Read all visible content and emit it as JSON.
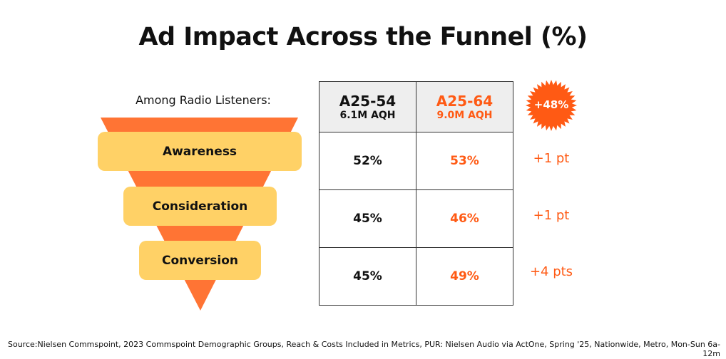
{
  "title": "Ad Impact Across the Funnel (%)",
  "subtitle": "Among Radio Listeners:",
  "funnel": [
    "Awareness",
    "Consideration",
    "Conversion"
  ],
  "table": {
    "headers": [
      {
        "label": "A25-54",
        "sub": "6.1M AQH"
      },
      {
        "label": "A25-64",
        "sub": "9.0M AQH"
      }
    ],
    "rows": [
      [
        "52%",
        "53%"
      ],
      [
        "45%",
        "46%"
      ],
      [
        "45%",
        "49%"
      ]
    ]
  },
  "badge": "+48%",
  "deltas": [
    "+1 pt",
    "+1 pt",
    "+4 pts"
  ],
  "source": "Source:Nielsen Commspoint, 2023 Commspoint Demographic Groups, Reach & Costs Included in Metrics, PUR: Nielsen Audio via ActOne, Spring '25, Nationwide, Metro, Mon-Sun 6a-12m",
  "colors": {
    "orange": "#FF7434",
    "yellow": "#FFD166",
    "accent": "#FF5A14"
  }
}
